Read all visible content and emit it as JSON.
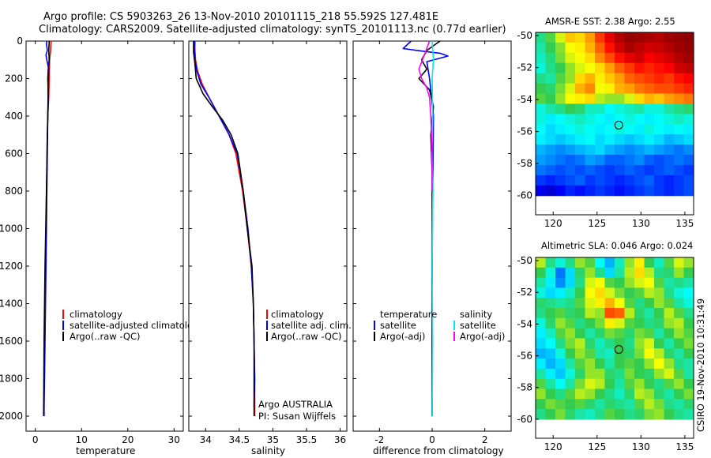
{
  "figure": {
    "title_line1": "Argo profile: CS 5903263_26 13-Nov-2010 20101115_218 55.592S 127.481E",
    "title_line2": "Climatology: CARS2009. Satellite-adjusted climatology: synTS_20101113.nc (0.77d earlier)",
    "stamp": "CSIRO 19-Nov-2010 10:31:49",
    "colors": {
      "clim": "#ff0000",
      "sat": "#0000ff",
      "argo": "#000000",
      "sal_sat": "#00e5ff",
      "sal_argo": "#ff00ff"
    }
  },
  "chart_data": [
    {
      "id": "temperature",
      "type": "line",
      "xlabel": "temperature",
      "xlim": [
        -2,
        32
      ],
      "ylim": [
        2080,
        0
      ],
      "xticks": [
        0,
        10,
        20,
        30
      ],
      "xtick_labels": [
        "0",
        "10",
        "20",
        "30"
      ],
      "yticks": [
        0,
        200,
        400,
        600,
        800,
        1000,
        1200,
        1400,
        1600,
        1800,
        2000
      ],
      "ytick_labels": [
        "0",
        "200",
        "400",
        "600",
        "800",
        "1000",
        "1200",
        "1400",
        "1600",
        "1800",
        "2000"
      ],
      "legend": [
        "climatology",
        "satellite-adjusted climatology",
        "Argo(..raw -QC)"
      ],
      "series": [
        {
          "name": "climatology",
          "color": "#ff0000",
          "x": [
            3.4,
            3.3,
            3.1,
            3.0,
            2.9,
            2.7,
            2.6,
            2.5,
            2.4,
            2.3,
            2.2,
            2.1,
            2.0,
            1.9,
            1.9,
            1.9
          ],
          "y": [
            0,
            50,
            100,
            200,
            300,
            400,
            500,
            700,
            800,
            1000,
            1200,
            1400,
            1600,
            1800,
            1950,
            2000
          ]
        },
        {
          "name": "satellite-adjusted climatology",
          "color": "#0000ff",
          "x": [
            2.5,
            2.4,
            2.5,
            2.6,
            2.3,
            2.5,
            2.9,
            2.8,
            2.7,
            2.6,
            2.5,
            2.4,
            2.3,
            2.2,
            2.1,
            2.0,
            1.9,
            1.9
          ],
          "y": [
            0,
            15,
            30,
            50,
            75,
            100,
            150,
            200,
            400,
            600,
            800,
            1000,
            1200,
            1400,
            1600,
            1800,
            1950,
            2000
          ]
        },
        {
          "name": "Argo(..raw -QC)",
          "color": "#000000",
          "x": [
            3.0,
            2.9,
            3.0,
            2.8,
            2.7,
            2.8,
            2.6,
            2.4,
            2.1,
            1.9,
            1.8
          ],
          "y": [
            0,
            50,
            100,
            150,
            200,
            300,
            500,
            800,
            1200,
            1600,
            2000
          ]
        }
      ]
    },
    {
      "id": "salinity",
      "type": "line",
      "xlabel": "salinity",
      "xlim": [
        33.75,
        36.1
      ],
      "ylim": [
        2080,
        0
      ],
      "xticks": [
        34,
        34.5,
        35,
        35.5,
        36
      ],
      "xtick_labels": [
        "34",
        "34.5",
        "35",
        "35.5",
        "36"
      ],
      "legend": [
        "climatology",
        "satellite adj. clim.",
        "Argo(..raw -QC)"
      ],
      "annotation_1": "Argo AUSTRALIA",
      "annotation_2": "PI: Susan Wijffels",
      "series": [
        {
          "name": "climatology",
          "color": "#ff0000",
          "x": [
            33.84,
            33.84,
            33.85,
            33.88,
            33.95,
            34.05,
            34.2,
            34.35,
            34.45,
            34.55,
            34.62,
            34.68,
            34.71,
            34.72,
            34.73,
            34.73
          ],
          "y": [
            0,
            40,
            100,
            160,
            230,
            300,
            400,
            500,
            600,
            800,
            1000,
            1200,
            1400,
            1600,
            1800,
            2000
          ]
        },
        {
          "name": "satellite adj. clim.",
          "color": "#0000ff",
          "x": [
            33.84,
            33.83,
            33.84,
            33.87,
            33.93,
            34.05,
            34.2,
            34.35,
            34.47,
            34.56,
            34.63,
            34.68,
            34.71,
            34.72,
            34.73,
            34.72
          ],
          "y": [
            0,
            40,
            100,
            160,
            230,
            300,
            400,
            500,
            600,
            800,
            1000,
            1200,
            1400,
            1600,
            1800,
            1950
          ]
        },
        {
          "name": "Argo(..raw -QC)",
          "color": "#000000",
          "x": [
            33.82,
            33.82,
            33.84,
            33.86,
            33.96,
            34.1,
            34.25,
            34.38,
            34.48,
            34.56,
            34.62,
            34.69,
            34.71,
            34.72,
            34.72,
            34.72
          ],
          "y": [
            0,
            60,
            120,
            200,
            280,
            350,
            420,
            500,
            600,
            800,
            1000,
            1200,
            1400,
            1600,
            1800,
            2000
          ]
        }
      ]
    },
    {
      "id": "difference",
      "type": "line",
      "xlabel": "difference from climatology",
      "xlim": [
        -3,
        3
      ],
      "ylim": [
        2080,
        0
      ],
      "xticks": [
        -2,
        0,
        2
      ],
      "xtick_labels": [
        "-2",
        "0",
        "2"
      ],
      "legend_temperature_header": "temperature",
      "legend_salinity_header": "salinity",
      "legend_temperature": [
        "satellite",
        "Argo(-adj)"
      ],
      "legend_salinity": [
        "satellite",
        "Argo(-adj)"
      ],
      "series": [
        {
          "name": "temperature satellite",
          "color": "#0000ff",
          "x": [
            -0.8,
            -1.1,
            -0.3,
            0.3,
            0.6,
            -0.2,
            -0.1,
            0.05,
            0.02,
            0.0,
            0.0,
            0.0
          ],
          "y": [
            0,
            40,
            55,
            65,
            80,
            110,
            200,
            400,
            800,
            1200,
            1600,
            2000
          ]
        },
        {
          "name": "temperature Argo(-adj)",
          "color": "#000000",
          "x": [
            0.3,
            -0.2,
            -0.4,
            -0.2,
            -0.5,
            -0.1,
            0.05,
            -0.05,
            0.0,
            0.0,
            0.0,
            0.0
          ],
          "y": [
            0,
            50,
            100,
            150,
            200,
            260,
            350,
            500,
            700,
            1200,
            1600,
            2000
          ]
        },
        {
          "name": "salinity satellite",
          "color": "#00e5ff",
          "x": [
            0.0,
            0.05,
            0.0,
            0.02,
            -0.01,
            0.03,
            0.0,
            0.02,
            0.0
          ],
          "y": [
            0,
            100,
            200,
            400,
            600,
            800,
            1200,
            1600,
            2000
          ]
        },
        {
          "name": "salinity Argo(-adj)",
          "color": "#ff00ff",
          "x": [
            -0.1,
            -0.5,
            -0.4,
            -0.2,
            -0.1,
            -0.05,
            0.0,
            0.0
          ],
          "y": [
            0,
            150,
            200,
            250,
            300,
            400,
            600,
            800
          ]
        }
      ]
    },
    {
      "id": "sst_map",
      "type": "heatmap",
      "title": "AMSR-E SST: 2.38 Argo: 2.55",
      "xlim": [
        118,
        136
      ],
      "ylim": [
        -61.2,
        -49.8
      ],
      "data_ylim": [
        -60,
        -49.8
      ],
      "xticks": [
        120,
        125,
        130,
        135
      ],
      "xtick_labels": [
        "120",
        "125",
        "130",
        "135"
      ],
      "yticks": [
        -50,
        -52,
        -54,
        -56,
        -58,
        -60
      ],
      "ytick_labels": [
        "-50",
        "-52",
        "-54",
        "-56",
        "-58",
        "-60"
      ],
      "marker": {
        "lon": 127.48,
        "lat": -55.6
      },
      "rows": [
        [
          0.46,
          0.52,
          0.6,
          0.68,
          0.66,
          0.72,
          0.82,
          0.9,
          0.95,
          0.98,
          0.97,
          0.96,
          0.95,
          0.97,
          0.98,
          0.99
        ],
        [
          0.44,
          0.5,
          0.55,
          0.62,
          0.64,
          0.7,
          0.78,
          0.86,
          0.92,
          0.96,
          0.94,
          0.92,
          0.93,
          0.95,
          0.97,
          0.98
        ],
        [
          0.42,
          0.47,
          0.54,
          0.6,
          0.62,
          0.66,
          0.74,
          0.8,
          0.86,
          0.9,
          0.92,
          0.88,
          0.9,
          0.92,
          0.95,
          0.97
        ],
        [
          0.4,
          0.46,
          0.5,
          0.56,
          0.6,
          0.62,
          0.66,
          0.72,
          0.78,
          0.82,
          0.86,
          0.84,
          0.86,
          0.88,
          0.92,
          0.94
        ],
        [
          0.46,
          0.44,
          0.52,
          0.56,
          0.66,
          0.7,
          0.64,
          0.68,
          0.72,
          0.78,
          0.8,
          0.82,
          0.84,
          0.82,
          0.86,
          0.88
        ],
        [
          0.5,
          0.48,
          0.54,
          0.6,
          0.7,
          0.74,
          0.62,
          0.64,
          0.7,
          0.72,
          0.76,
          0.78,
          0.8,
          0.8,
          0.82,
          0.84
        ],
        [
          0.52,
          0.5,
          0.56,
          0.62,
          0.64,
          0.66,
          0.58,
          0.56,
          0.56,
          0.6,
          0.66,
          0.7,
          0.68,
          0.72,
          0.74,
          0.76
        ],
        [
          0.4,
          0.44,
          0.46,
          0.5,
          0.48,
          0.42,
          0.42,
          0.38,
          0.4,
          0.42,
          0.44,
          0.4,
          0.4,
          0.44,
          0.46,
          0.48
        ],
        [
          0.4,
          0.36,
          0.38,
          0.4,
          0.42,
          0.4,
          0.38,
          0.36,
          0.38,
          0.4,
          0.38,
          0.36,
          0.38,
          0.4,
          0.42,
          0.4
        ],
        [
          0.38,
          0.34,
          0.36,
          0.38,
          0.4,
          0.38,
          0.36,
          0.38,
          0.4,
          0.38,
          0.36,
          0.4,
          0.38,
          0.36,
          0.38,
          0.36
        ],
        [
          0.36,
          0.34,
          0.32,
          0.34,
          0.36,
          0.38,
          0.34,
          0.36,
          0.34,
          0.32,
          0.34,
          0.36,
          0.34,
          0.3,
          0.32,
          0.34
        ],
        [
          0.3,
          0.28,
          0.26,
          0.28,
          0.3,
          0.32,
          0.34,
          0.3,
          0.28,
          0.26,
          0.28,
          0.3,
          0.28,
          0.26,
          0.24,
          0.26
        ],
        [
          0.28,
          0.26,
          0.24,
          0.22,
          0.24,
          0.28,
          0.26,
          0.22,
          0.22,
          0.24,
          0.26,
          0.22,
          0.2,
          0.22,
          0.24,
          0.22
        ],
        [
          0.24,
          0.22,
          0.2,
          0.22,
          0.2,
          0.22,
          0.2,
          0.18,
          0.2,
          0.22,
          0.2,
          0.18,
          0.2,
          0.22,
          0.2,
          0.18
        ],
        [
          0.18,
          0.16,
          0.18,
          0.2,
          0.22,
          0.18,
          0.2,
          0.18,
          0.16,
          0.18,
          0.2,
          0.22,
          0.18,
          0.16,
          0.18,
          0.2
        ],
        [
          0.1,
          0.08,
          0.12,
          0.16,
          0.14,
          0.16,
          0.18,
          0.16,
          0.14,
          0.16,
          0.18,
          0.2,
          0.18,
          0.16,
          0.18,
          0.2
        ]
      ]
    },
    {
      "id": "sla_map",
      "type": "heatmap",
      "title": "Altimetric SLA: 0.046 Argo: 0.024",
      "xlim": [
        118,
        136
      ],
      "ylim": [
        -61.2,
        -49.8
      ],
      "data_ylim": [
        -60,
        -49.8
      ],
      "xticks": [
        120,
        125,
        130,
        135
      ],
      "xtick_labels": [
        "120",
        "125",
        "130",
        "135"
      ],
      "yticks": [
        -50,
        -52,
        -54,
        -56,
        -58,
        -60
      ],
      "ytick_labels": [
        "-50",
        "-52",
        "-54",
        "-56",
        "-58",
        "-60"
      ],
      "marker": {
        "lon": 127.48,
        "lat": -55.6
      },
      "rows": [
        [
          0.58,
          0.46,
          0.4,
          0.46,
          0.56,
          0.52,
          0.38,
          0.3,
          0.42,
          0.56,
          0.64,
          0.5,
          0.42,
          0.52,
          0.6,
          0.56
        ],
        [
          0.5,
          0.4,
          0.24,
          0.34,
          0.48,
          0.56,
          0.46,
          0.34,
          0.44,
          0.58,
          0.66,
          0.58,
          0.46,
          0.48,
          0.56,
          0.5
        ],
        [
          0.44,
          0.36,
          0.26,
          0.34,
          0.46,
          0.6,
          0.62,
          0.52,
          0.5,
          0.56,
          0.6,
          0.62,
          0.52,
          0.44,
          0.46,
          0.44
        ],
        [
          0.4,
          0.34,
          0.36,
          0.42,
          0.5,
          0.62,
          0.66,
          0.6,
          0.54,
          0.5,
          0.52,
          0.58,
          0.56,
          0.46,
          0.4,
          0.38
        ],
        [
          0.48,
          0.46,
          0.44,
          0.46,
          0.52,
          0.6,
          0.64,
          0.7,
          0.62,
          0.52,
          0.46,
          0.5,
          0.56,
          0.52,
          0.44,
          0.4
        ],
        [
          0.46,
          0.5,
          0.52,
          0.48,
          0.5,
          0.58,
          0.56,
          0.8,
          0.78,
          0.58,
          0.48,
          0.44,
          0.5,
          0.58,
          0.52,
          0.46
        ],
        [
          0.4,
          0.48,
          0.56,
          0.52,
          0.46,
          0.5,
          0.54,
          0.64,
          0.6,
          0.52,
          0.5,
          0.46,
          0.48,
          0.56,
          0.58,
          0.5
        ],
        [
          0.36,
          0.42,
          0.52,
          0.56,
          0.5,
          0.44,
          0.48,
          0.54,
          0.52,
          0.48,
          0.54,
          0.52,
          0.44,
          0.5,
          0.56,
          0.52
        ],
        [
          0.34,
          0.38,
          0.46,
          0.54,
          0.58,
          0.48,
          0.42,
          0.46,
          0.5,
          0.46,
          0.56,
          0.6,
          0.5,
          0.44,
          0.5,
          0.54
        ],
        [
          0.3,
          0.32,
          0.4,
          0.5,
          0.56,
          0.52,
          0.44,
          0.42,
          0.5,
          0.48,
          0.54,
          0.62,
          0.58,
          0.48,
          0.44,
          0.5
        ],
        [
          0.36,
          0.3,
          0.34,
          0.44,
          0.52,
          0.56,
          0.5,
          0.44,
          0.5,
          0.52,
          0.5,
          0.56,
          0.62,
          0.56,
          0.46,
          0.44
        ],
        [
          0.44,
          0.36,
          0.32,
          0.4,
          0.48,
          0.56,
          0.56,
          0.48,
          0.46,
          0.54,
          0.5,
          0.48,
          0.56,
          0.6,
          0.52,
          0.44
        ],
        [
          0.52,
          0.44,
          0.38,
          0.44,
          0.54,
          0.6,
          0.58,
          0.5,
          0.44,
          0.52,
          0.56,
          0.5,
          0.46,
          0.52,
          0.56,
          0.5
        ],
        [
          0.56,
          0.5,
          0.46,
          0.52,
          0.58,
          0.56,
          0.5,
          0.46,
          0.42,
          0.48,
          0.58,
          0.56,
          0.48,
          0.44,
          0.5,
          0.54
        ],
        [
          0.5,
          0.54,
          0.52,
          0.5,
          0.52,
          0.48,
          0.44,
          0.48,
          0.46,
          0.44,
          0.52,
          0.58,
          0.54,
          0.46,
          0.44,
          0.48
        ],
        [
          0.46,
          0.5,
          0.54,
          0.48,
          0.44,
          0.42,
          0.46,
          0.52,
          0.5,
          0.46,
          0.48,
          0.54,
          0.56,
          0.5,
          0.46,
          0.44
        ]
      ]
    }
  ]
}
